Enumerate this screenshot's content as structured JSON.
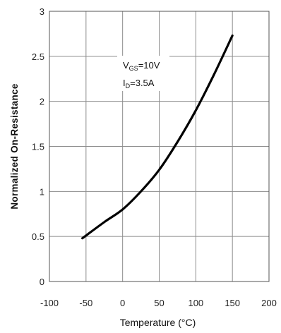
{
  "chart_data": {
    "type": "line",
    "xlabel": "Temperature (°C)",
    "ylabel": "Normalized On-Resistance",
    "xlim": [
      -100,
      200
    ],
    "ylim": [
      0,
      3
    ],
    "x_ticks": [
      -100,
      -50,
      0,
      50,
      100,
      150,
      200
    ],
    "y_ticks": [
      0,
      0.5,
      1,
      1.5,
      2,
      2.5,
      3
    ],
    "x_tick_labels": [
      "-100",
      "-50",
      "0",
      "50",
      "100",
      "150",
      "200"
    ],
    "y_tick_labels": [
      "0",
      "0.5",
      "1",
      "1.5",
      "2",
      "2.5",
      "3"
    ],
    "grid": true,
    "annotations": {
      "vgs": {
        "main": "V",
        "sub": "GS",
        "rest": "=10V"
      },
      "id": {
        "main": "I",
        "sub": "D",
        "rest": "=3.5A"
      }
    },
    "series": [
      {
        "x": [
          -55,
          -25,
          0,
          25,
          50,
          75,
          100,
          125,
          150
        ],
        "y": [
          0.48,
          0.66,
          0.8,
          1.0,
          1.24,
          1.55,
          1.9,
          2.3,
          2.73
        ]
      }
    ],
    "colors": {
      "line": "#000000",
      "grid": "#8c8c8c",
      "frame": "#555555"
    }
  }
}
